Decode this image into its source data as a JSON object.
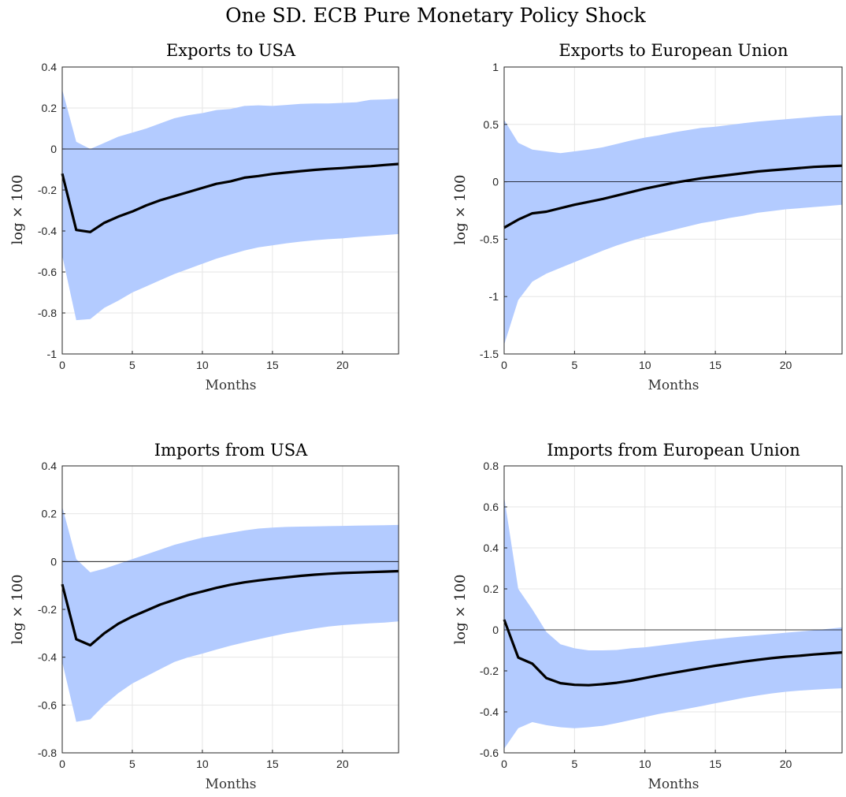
{
  "figure_title": "One SD. ECB Pure Monetary Policy Shock",
  "colors": {
    "band": "#b3cbff",
    "line": "#000000"
  },
  "chart_data": [
    {
      "type": "line",
      "title": "Exports to USA",
      "xlabel": "Months",
      "ylabel": "log × 100",
      "xlim": [
        0,
        24
      ],
      "ylim": [
        -1,
        0.4
      ],
      "xticks": [
        0,
        5,
        10,
        15,
        20
      ],
      "yticks": [
        -1,
        -0.8,
        -0.6,
        -0.4,
        -0.2,
        0,
        0.2,
        0.4
      ],
      "ytick_labels": [
        "-1",
        "-0.8",
        "-0.6",
        "-0.4",
        "-0.2",
        "0",
        "0.2",
        "0.4"
      ],
      "x": [
        0,
        1,
        2,
        3,
        4,
        5,
        6,
        7,
        8,
        9,
        10,
        11,
        12,
        13,
        14,
        15,
        16,
        17,
        18,
        19,
        20,
        21,
        22,
        23,
        24
      ],
      "series": [
        {
          "name": "median",
          "values": [
            -0.12,
            -0.395,
            -0.405,
            -0.36,
            -0.33,
            -0.305,
            -0.275,
            -0.25,
            -0.23,
            -0.21,
            -0.19,
            -0.17,
            -0.158,
            -0.14,
            -0.132,
            -0.122,
            -0.115,
            -0.108,
            -0.102,
            -0.097,
            -0.093,
            -0.088,
            -0.084,
            -0.078,
            -0.073
          ]
        },
        {
          "name": "upper",
          "values": [
            0.29,
            0.035,
            0.0,
            0.03,
            0.06,
            0.08,
            0.1,
            0.125,
            0.15,
            0.165,
            0.175,
            0.19,
            0.195,
            0.21,
            0.213,
            0.21,
            0.215,
            0.22,
            0.222,
            0.222,
            0.225,
            0.228,
            0.24,
            0.242,
            0.245
          ]
        },
        {
          "name": "lower",
          "values": [
            -0.52,
            -0.835,
            -0.83,
            -0.775,
            -0.74,
            -0.7,
            -0.67,
            -0.64,
            -0.61,
            -0.585,
            -0.56,
            -0.535,
            -0.515,
            -0.495,
            -0.48,
            -0.47,
            -0.46,
            -0.452,
            -0.445,
            -0.44,
            -0.436,
            -0.43,
            -0.425,
            -0.42,
            -0.415
          ]
        }
      ]
    },
    {
      "type": "line",
      "title": "Exports to European Union",
      "xlabel": "Months",
      "ylabel": "log × 100",
      "xlim": [
        0,
        24
      ],
      "ylim": [
        -1.5,
        1
      ],
      "xticks": [
        0,
        5,
        10,
        15,
        20
      ],
      "yticks": [
        -1.5,
        -1,
        -0.5,
        0,
        0.5,
        1
      ],
      "ytick_labels": [
        "-1.5",
        "-1",
        "-0.5",
        "0",
        "0.5",
        "1"
      ],
      "x": [
        0,
        1,
        2,
        3,
        4,
        5,
        6,
        7,
        8,
        9,
        10,
        11,
        12,
        13,
        14,
        15,
        16,
        17,
        18,
        19,
        20,
        21,
        22,
        23,
        24
      ],
      "series": [
        {
          "name": "median",
          "values": [
            -0.4,
            -0.33,
            -0.275,
            -0.26,
            -0.23,
            -0.2,
            -0.175,
            -0.15,
            -0.12,
            -0.09,
            -0.06,
            -0.035,
            -0.01,
            0.01,
            0.03,
            0.045,
            0.06,
            0.075,
            0.09,
            0.1,
            0.11,
            0.12,
            0.13,
            0.135,
            0.14
          ]
        },
        {
          "name": "upper",
          "values": [
            0.54,
            0.34,
            0.28,
            0.265,
            0.25,
            0.265,
            0.28,
            0.3,
            0.33,
            0.36,
            0.385,
            0.405,
            0.43,
            0.45,
            0.47,
            0.48,
            0.495,
            0.51,
            0.525,
            0.535,
            0.545,
            0.555,
            0.565,
            0.575,
            0.58
          ]
        },
        {
          "name": "lower",
          "values": [
            -1.42,
            -1.03,
            -0.87,
            -0.8,
            -0.75,
            -0.7,
            -0.65,
            -0.6,
            -0.555,
            -0.515,
            -0.48,
            -0.45,
            -0.42,
            -0.39,
            -0.36,
            -0.34,
            -0.315,
            -0.295,
            -0.27,
            -0.255,
            -0.24,
            -0.23,
            -0.22,
            -0.21,
            -0.2
          ]
        }
      ]
    },
    {
      "type": "line",
      "title": "Imports from USA",
      "xlabel": "Months",
      "ylabel": "log × 100",
      "xlim": [
        0,
        24
      ],
      "ylim": [
        -0.8,
        0.4
      ],
      "xticks": [
        0,
        5,
        10,
        15,
        20
      ],
      "yticks": [
        -0.8,
        -0.6,
        -0.4,
        -0.2,
        0,
        0.2,
        0.4
      ],
      "ytick_labels": [
        "-0.8",
        "-0.6",
        "-0.4",
        "-0.2",
        "0",
        "0.2",
        "0.4"
      ],
      "x": [
        0,
        1,
        2,
        3,
        4,
        5,
        6,
        7,
        8,
        9,
        10,
        11,
        12,
        13,
        14,
        15,
        16,
        17,
        18,
        19,
        20,
        21,
        22,
        23,
        24
      ],
      "series": [
        {
          "name": "median",
          "values": [
            -0.095,
            -0.325,
            -0.35,
            -0.3,
            -0.26,
            -0.23,
            -0.205,
            -0.18,
            -0.16,
            -0.14,
            -0.125,
            -0.11,
            -0.097,
            -0.087,
            -0.079,
            -0.072,
            -0.066,
            -0.06,
            -0.055,
            -0.051,
            -0.048,
            -0.046,
            -0.044,
            -0.042,
            -0.04
          ]
        },
        {
          "name": "upper",
          "values": [
            0.23,
            0.01,
            -0.045,
            -0.03,
            -0.01,
            0.01,
            0.03,
            0.05,
            0.07,
            0.085,
            0.1,
            0.11,
            0.12,
            0.13,
            0.138,
            0.142,
            0.145,
            0.146,
            0.147,
            0.148,
            0.149,
            0.15,
            0.151,
            0.152,
            0.153
          ]
        },
        {
          "name": "lower",
          "values": [
            -0.42,
            -0.67,
            -0.66,
            -0.6,
            -0.55,
            -0.51,
            -0.48,
            -0.45,
            -0.42,
            -0.4,
            -0.385,
            -0.368,
            -0.352,
            -0.338,
            -0.325,
            -0.312,
            -0.3,
            -0.29,
            -0.28,
            -0.272,
            -0.266,
            -0.262,
            -0.258,
            -0.255,
            -0.25
          ]
        }
      ]
    },
    {
      "type": "line",
      "title": "Imports from European Union",
      "xlabel": "Months",
      "ylabel": "log × 100",
      "xlim": [
        0,
        24
      ],
      "ylim": [
        -0.6,
        0.8
      ],
      "xticks": [
        0,
        5,
        10,
        15,
        20
      ],
      "yticks": [
        -0.6,
        -0.4,
        -0.2,
        0,
        0.2,
        0.4,
        0.6,
        0.8
      ],
      "ytick_labels": [
        "-0.6",
        "-0.4",
        "-0.2",
        "0",
        "0.2",
        "0.4",
        "0.6",
        "0.8"
      ],
      "x": [
        0,
        1,
        2,
        3,
        4,
        5,
        6,
        7,
        8,
        9,
        10,
        11,
        12,
        13,
        14,
        15,
        16,
        17,
        18,
        19,
        20,
        21,
        22,
        23,
        24
      ],
      "series": [
        {
          "name": "median",
          "values": [
            0.05,
            -0.135,
            -0.165,
            -0.235,
            -0.26,
            -0.268,
            -0.27,
            -0.265,
            -0.258,
            -0.248,
            -0.235,
            -0.222,
            -0.21,
            -0.198,
            -0.186,
            -0.175,
            -0.165,
            -0.155,
            -0.146,
            -0.138,
            -0.131,
            -0.126,
            -0.12,
            -0.115,
            -0.11
          ]
        },
        {
          "name": "upper",
          "values": [
            0.65,
            0.2,
            0.1,
            -0.01,
            -0.07,
            -0.09,
            -0.1,
            -0.1,
            -0.098,
            -0.09,
            -0.085,
            -0.077,
            -0.068,
            -0.06,
            -0.052,
            -0.045,
            -0.038,
            -0.032,
            -0.026,
            -0.02,
            -0.014,
            -0.008,
            -0.002,
            0.005,
            0.012
          ]
        },
        {
          "name": "lower",
          "values": [
            -0.58,
            -0.48,
            -0.45,
            -0.465,
            -0.475,
            -0.48,
            -0.475,
            -0.468,
            -0.455,
            -0.44,
            -0.425,
            -0.41,
            -0.398,
            -0.385,
            -0.372,
            -0.358,
            -0.345,
            -0.332,
            -0.32,
            -0.31,
            -0.302,
            -0.296,
            -0.292,
            -0.288,
            -0.285
          ]
        }
      ]
    }
  ]
}
